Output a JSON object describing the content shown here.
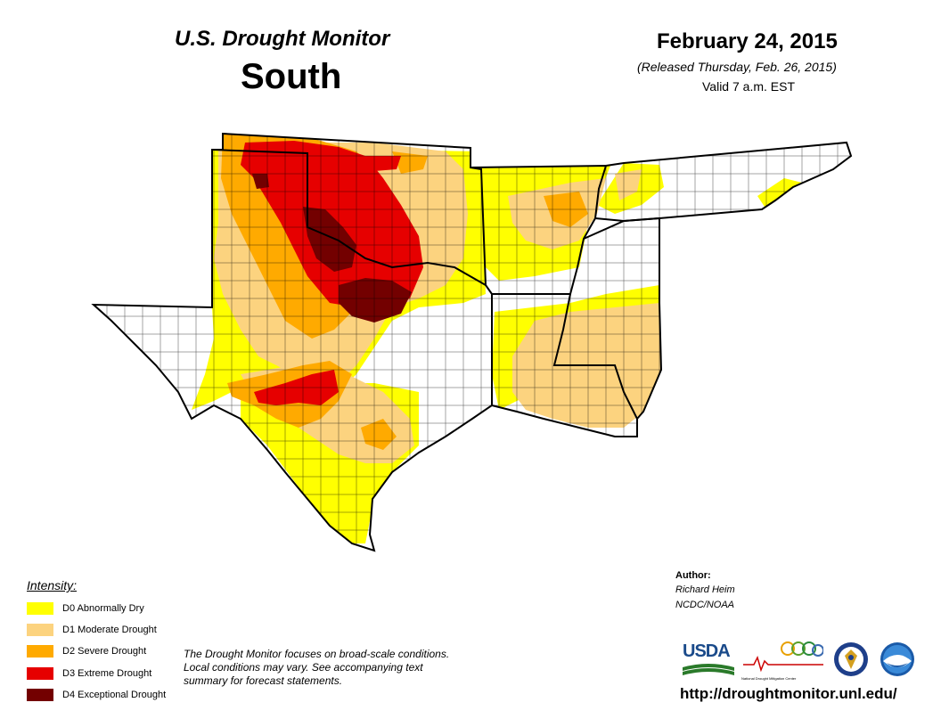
{
  "header": {
    "title": "U.S. Drought Monitor",
    "region": "South",
    "date": "February 24, 2015",
    "released": "(Released Thursday, Feb. 26, 2015)",
    "valid": "Valid 7 a.m. EST"
  },
  "legend": {
    "heading": "Intensity:",
    "items": [
      {
        "label": "D0 Abnormally Dry",
        "color": "#ffff00"
      },
      {
        "label": "D1 Moderate Drought",
        "color": "#fcd37f"
      },
      {
        "label": "D2 Severe Drought",
        "color": "#ffaa00"
      },
      {
        "label": "D3 Extreme Drought",
        "color": "#e60000"
      },
      {
        "label": "D4 Exceptional Drought",
        "color": "#730000"
      }
    ]
  },
  "note": "The Drought Monitor focuses on broad-scale conditions. Local conditions may vary. See accompanying text summary for forecast statements.",
  "author": {
    "heading": "Author:",
    "name": "Richard Heim",
    "org": "NCDC/NOAA"
  },
  "logos": {
    "usda": "USDA",
    "ndmc": "National Drought Mitigation Center"
  },
  "url": "http://droughtmonitor.unl.edu/"
}
